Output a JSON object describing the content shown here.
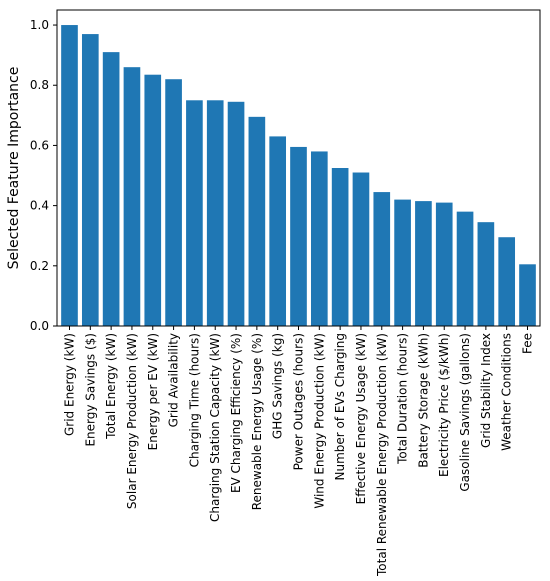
{
  "chart_data": {
    "type": "bar",
    "title": "",
    "xlabel": "",
    "ylabel": "Selected Feature Importance",
    "ylim": [
      0,
      1.05
    ],
    "yticks": [
      "0.0",
      "0.2",
      "0.4",
      "0.6",
      "0.8",
      "1.0"
    ],
    "grid": false,
    "bar_color": "#1f77b4",
    "categories": [
      "Grid Energy (kW)",
      "Energy Savings ($)",
      "Total Energy (kW)",
      "Solar Energy Production (kW)",
      "Energy per EV (kW)",
      "Grid Availability",
      "Charging Time (hours)",
      "Charging Station Capacity (kW)",
      "EV Charging Efficiency (%)",
      "Renewable Energy Usage (%)",
      "GHG Savings (kg)",
      "Power Outages (hours)",
      "Wind Energy Production (kW)",
      "Number of EVs Charging",
      "Effective Energy Usage (kW)",
      "Total Renewable Energy Production (kW)",
      "Total Duration (hours)",
      "Battery Storage (kWh)",
      "Electricity Price ($/kWh)",
      "Gasoline Savings (gallons)",
      "Grid Stability Index",
      "Weather Conditions",
      "Fee"
    ],
    "values": [
      1.0,
      0.97,
      0.91,
      0.86,
      0.835,
      0.82,
      0.75,
      0.75,
      0.745,
      0.695,
      0.63,
      0.595,
      0.58,
      0.525,
      0.51,
      0.445,
      0.42,
      0.415,
      0.41,
      0.38,
      0.345,
      0.295,
      0.205
    ]
  }
}
